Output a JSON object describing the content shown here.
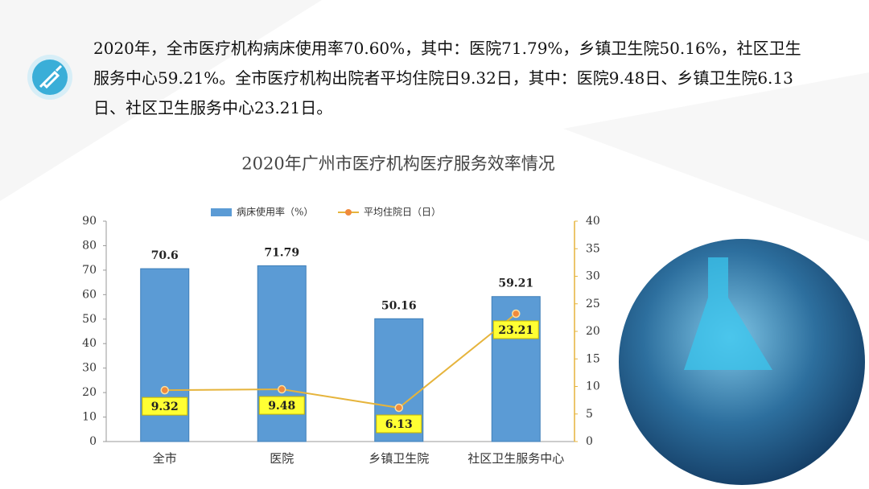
{
  "paragraph": "2020年，全市医疗机构病床使用率70.60%，其中：医院71.79%，乡镇卫生院50.16%，社区卫生服务中心59.21%。全市医疗机构出院者平均住院日9.32日，其中：医院9.48日、乡镇卫生院6.13日、社区卫生服务中心23.21日。",
  "chart_data": {
    "type": "bar",
    "title": "2020年广州市医疗机构医疗服务效率情况",
    "categories": [
      "全市",
      "医院",
      "乡镇卫生院",
      "社区卫生服务中心"
    ],
    "series": [
      {
        "name": "病床使用率（%）",
        "color": "#5b9bd5",
        "values": [
          70.6,
          71.79,
          50.16,
          59.21
        ]
      },
      {
        "name": "平均住院日（日）",
        "type": "line",
        "axis": "y2",
        "color": "#e6b43c",
        "values": [
          9.32,
          9.48,
          6.13,
          23.21
        ]
      }
    ],
    "ylim": [
      0,
      90
    ],
    "yticks": [
      0,
      10,
      20,
      30,
      40,
      50,
      60,
      70,
      80,
      90
    ],
    "y2lim": [
      0,
      40
    ],
    "y2ticks": [
      0,
      5,
      10,
      15,
      20,
      25,
      30,
      35,
      40
    ],
    "legend": "top"
  }
}
